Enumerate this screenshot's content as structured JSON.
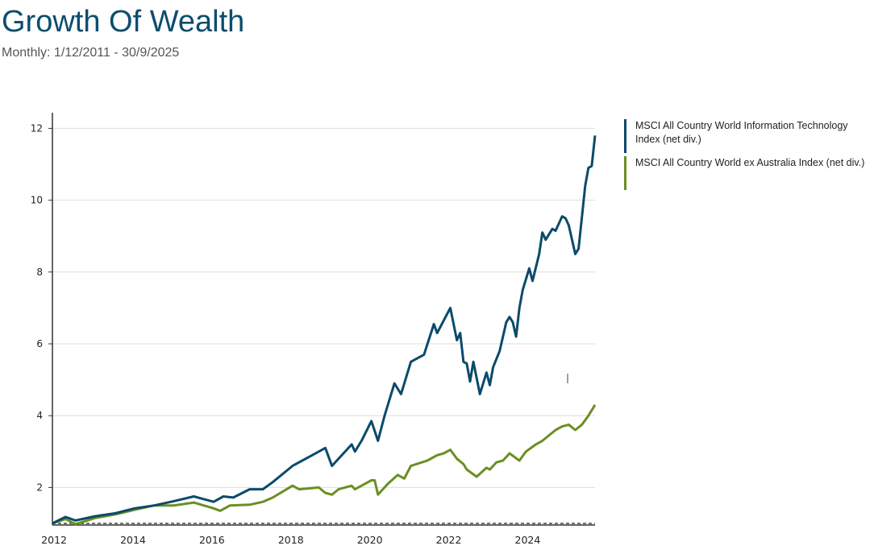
{
  "header": {
    "title": "Growth Of Wealth",
    "subtitle": "Monthly: 1/12/2011 - 30/9/2025"
  },
  "chart_data": {
    "type": "line",
    "title": "Growth Of Wealth",
    "subtitle": "Monthly: 1/12/2011 - 30/9/2025",
    "xlabel": "",
    "ylabel": "",
    "xlim": [
      "2011-12",
      "2025-09"
    ],
    "ylim": [
      1,
      12.2
    ],
    "yticks": [
      2,
      4,
      6,
      8,
      10,
      12
    ],
    "xticks": [
      "2012",
      "2014",
      "2016",
      "2018",
      "2020",
      "2022",
      "2024"
    ],
    "grid": "horizontal",
    "baseline": 1,
    "legend_placement": "right",
    "series": [
      {
        "name": "MSCI All Country World Information Technology Index (net div.)",
        "color": "#0b4a6b",
        "points": [
          [
            "2011-12",
            1.0
          ],
          [
            "2012-04",
            1.18
          ],
          [
            "2012-07",
            1.08
          ],
          [
            "2013-01",
            1.2
          ],
          [
            "2013-07",
            1.28
          ],
          [
            "2014-01",
            1.42
          ],
          [
            "2014-07",
            1.5
          ],
          [
            "2015-01",
            1.62
          ],
          [
            "2015-07",
            1.75
          ],
          [
            "2016-01",
            1.6
          ],
          [
            "2016-04",
            1.75
          ],
          [
            "2016-07",
            1.72
          ],
          [
            "2016-12",
            1.95
          ],
          [
            "2017-04",
            1.95
          ],
          [
            "2017-07",
            2.15
          ],
          [
            "2018-01",
            2.6
          ],
          [
            "2018-07",
            2.9
          ],
          [
            "2018-11",
            3.1
          ],
          [
            "2019-01",
            2.6
          ],
          [
            "2019-07",
            3.2
          ],
          [
            "2019-08",
            3.0
          ],
          [
            "2019-10",
            3.3
          ],
          [
            "2020-01",
            3.85
          ],
          [
            "2020-03",
            3.3
          ],
          [
            "2020-05",
            4.0
          ],
          [
            "2020-08",
            4.9
          ],
          [
            "2020-10",
            4.6
          ],
          [
            "2021-01",
            5.5
          ],
          [
            "2021-05",
            5.7
          ],
          [
            "2021-08",
            6.55
          ],
          [
            "2021-09",
            6.3
          ],
          [
            "2022-01",
            7.0
          ],
          [
            "2022-03",
            6.1
          ],
          [
            "2022-04",
            6.3
          ],
          [
            "2022-05",
            5.5
          ],
          [
            "2022-06",
            5.45
          ],
          [
            "2022-07",
            4.95
          ],
          [
            "2022-08",
            5.5
          ],
          [
            "2022-10",
            4.6
          ],
          [
            "2022-12",
            5.2
          ],
          [
            "2023-01",
            4.85
          ],
          [
            "2023-02",
            5.35
          ],
          [
            "2023-04",
            5.8
          ],
          [
            "2023-06",
            6.6
          ],
          [
            "2023-07",
            6.75
          ],
          [
            "2023-08",
            6.6
          ],
          [
            "2023-09",
            6.2
          ],
          [
            "2023-10",
            7.0
          ],
          [
            "2023-11",
            7.5
          ],
          [
            "2024-01",
            8.1
          ],
          [
            "2024-02",
            7.75
          ],
          [
            "2024-04",
            8.5
          ],
          [
            "2024-05",
            9.1
          ],
          [
            "2024-06",
            8.9
          ],
          [
            "2024-08",
            9.2
          ],
          [
            "2024-09",
            9.15
          ],
          [
            "2024-11",
            9.55
          ],
          [
            "2024-12",
            9.5
          ],
          [
            "2025-01",
            9.3
          ],
          [
            "2025-03",
            8.5
          ],
          [
            "2025-04",
            8.65
          ],
          [
            "2025-06",
            10.4
          ],
          [
            "2025-07",
            10.9
          ],
          [
            "2025-08",
            10.95
          ],
          [
            "2025-09",
            11.8
          ]
        ]
      },
      {
        "name": "MSCI All Country World ex Australia Index (net div.)",
        "color": "#6a8f23",
        "points": [
          [
            "2011-12",
            1.0
          ],
          [
            "2012-04",
            1.12
          ],
          [
            "2012-07",
            0.98
          ],
          [
            "2013-01",
            1.15
          ],
          [
            "2013-07",
            1.25
          ],
          [
            "2014-01",
            1.38
          ],
          [
            "2014-07",
            1.5
          ],
          [
            "2015-01",
            1.5
          ],
          [
            "2015-07",
            1.58
          ],
          [
            "2016-01",
            1.42
          ],
          [
            "2016-03",
            1.35
          ],
          [
            "2016-06",
            1.5
          ],
          [
            "2016-12",
            1.52
          ],
          [
            "2017-04",
            1.6
          ],
          [
            "2017-07",
            1.72
          ],
          [
            "2018-01",
            2.05
          ],
          [
            "2018-03",
            1.95
          ],
          [
            "2018-09",
            2.0
          ],
          [
            "2018-11",
            1.85
          ],
          [
            "2019-01",
            1.8
          ],
          [
            "2019-03",
            1.95
          ],
          [
            "2019-07",
            2.05
          ],
          [
            "2019-08",
            1.95
          ],
          [
            "2019-10",
            2.05
          ],
          [
            "2020-01",
            2.2
          ],
          [
            "2020-02",
            2.2
          ],
          [
            "2020-03",
            1.8
          ],
          [
            "2020-06",
            2.1
          ],
          [
            "2020-09",
            2.35
          ],
          [
            "2020-11",
            2.25
          ],
          [
            "2021-01",
            2.6
          ],
          [
            "2021-06",
            2.75
          ],
          [
            "2021-09",
            2.9
          ],
          [
            "2021-11",
            2.95
          ],
          [
            "2022-01",
            3.05
          ],
          [
            "2022-03",
            2.8
          ],
          [
            "2022-05",
            2.65
          ],
          [
            "2022-06",
            2.5
          ],
          [
            "2022-09",
            2.3
          ],
          [
            "2022-12",
            2.55
          ],
          [
            "2023-01",
            2.5
          ],
          [
            "2023-03",
            2.7
          ],
          [
            "2023-05",
            2.75
          ],
          [
            "2023-07",
            2.95
          ],
          [
            "2023-10",
            2.75
          ],
          [
            "2023-12",
            3.0
          ],
          [
            "2024-03",
            3.2
          ],
          [
            "2024-05",
            3.3
          ],
          [
            "2024-09",
            3.6
          ],
          [
            "2024-11",
            3.7
          ],
          [
            "2025-01",
            3.75
          ],
          [
            "2025-03",
            3.6
          ],
          [
            "2025-05",
            3.75
          ],
          [
            "2025-07",
            4.0
          ],
          [
            "2025-09",
            4.3
          ]
        ]
      }
    ]
  }
}
